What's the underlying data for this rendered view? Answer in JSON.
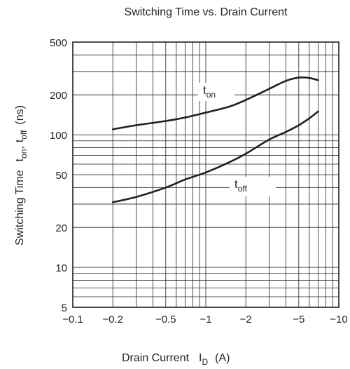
{
  "chart_data": {
    "type": "line",
    "title": "Switching Time vs. Drain Current",
    "xlabel": {
      "main": "Drain Current",
      "symbol": "I",
      "sub": "D",
      "unit": "(A)"
    },
    "ylabel": {
      "main": "Switching Time",
      "sym1": "t",
      "sub1": "on",
      "sep": ",",
      "sym2": "t",
      "sub2": "off",
      "unit": "(ns)"
    },
    "x_scale": "log",
    "y_scale": "log",
    "xlim": [
      -0.1,
      -10
    ],
    "ylim": [
      5,
      500
    ],
    "x_ticks": [
      {
        "value": -0.1,
        "label": "−0.1"
      },
      {
        "value": -0.2,
        "label": "−0.2"
      },
      {
        "value": -0.5,
        "label": "−0.5"
      },
      {
        "value": -1,
        "label": "−1"
      },
      {
        "value": -2,
        "label": "−2"
      },
      {
        "value": -5,
        "label": "−5"
      },
      {
        "value": -10,
        "label": "−10"
      }
    ],
    "y_ticks": [
      {
        "value": 5,
        "label": "5"
      },
      {
        "value": 10,
        "label": "10"
      },
      {
        "value": 20,
        "label": "20"
      },
      {
        "value": 50,
        "label": "50"
      },
      {
        "value": 100,
        "label": "100"
      },
      {
        "value": 200,
        "label": "200"
      },
      {
        "value": 500,
        "label": "500"
      }
    ],
    "grid": true,
    "series": [
      {
        "label": {
          "main": "t",
          "sub": "on"
        },
        "x": [
          -0.2,
          -0.3,
          -0.5,
          -0.7,
          -1,
          -1.5,
          -2,
          -3,
          -4,
          -5,
          -6,
          -7
        ],
        "y": [
          110,
          118,
          127,
          135,
          147,
          163,
          183,
          222,
          255,
          270,
          268,
          258
        ]
      },
      {
        "label": {
          "main": "t",
          "sub": "off"
        },
        "x": [
          -0.2,
          -0.3,
          -0.5,
          -0.7,
          -1,
          -1.5,
          -2,
          -3,
          -4,
          -5,
          -6,
          -7
        ],
        "y": [
          31,
          34,
          40,
          46,
          52,
          62,
          72,
          92,
          105,
          118,
          133,
          150
        ]
      }
    ]
  }
}
